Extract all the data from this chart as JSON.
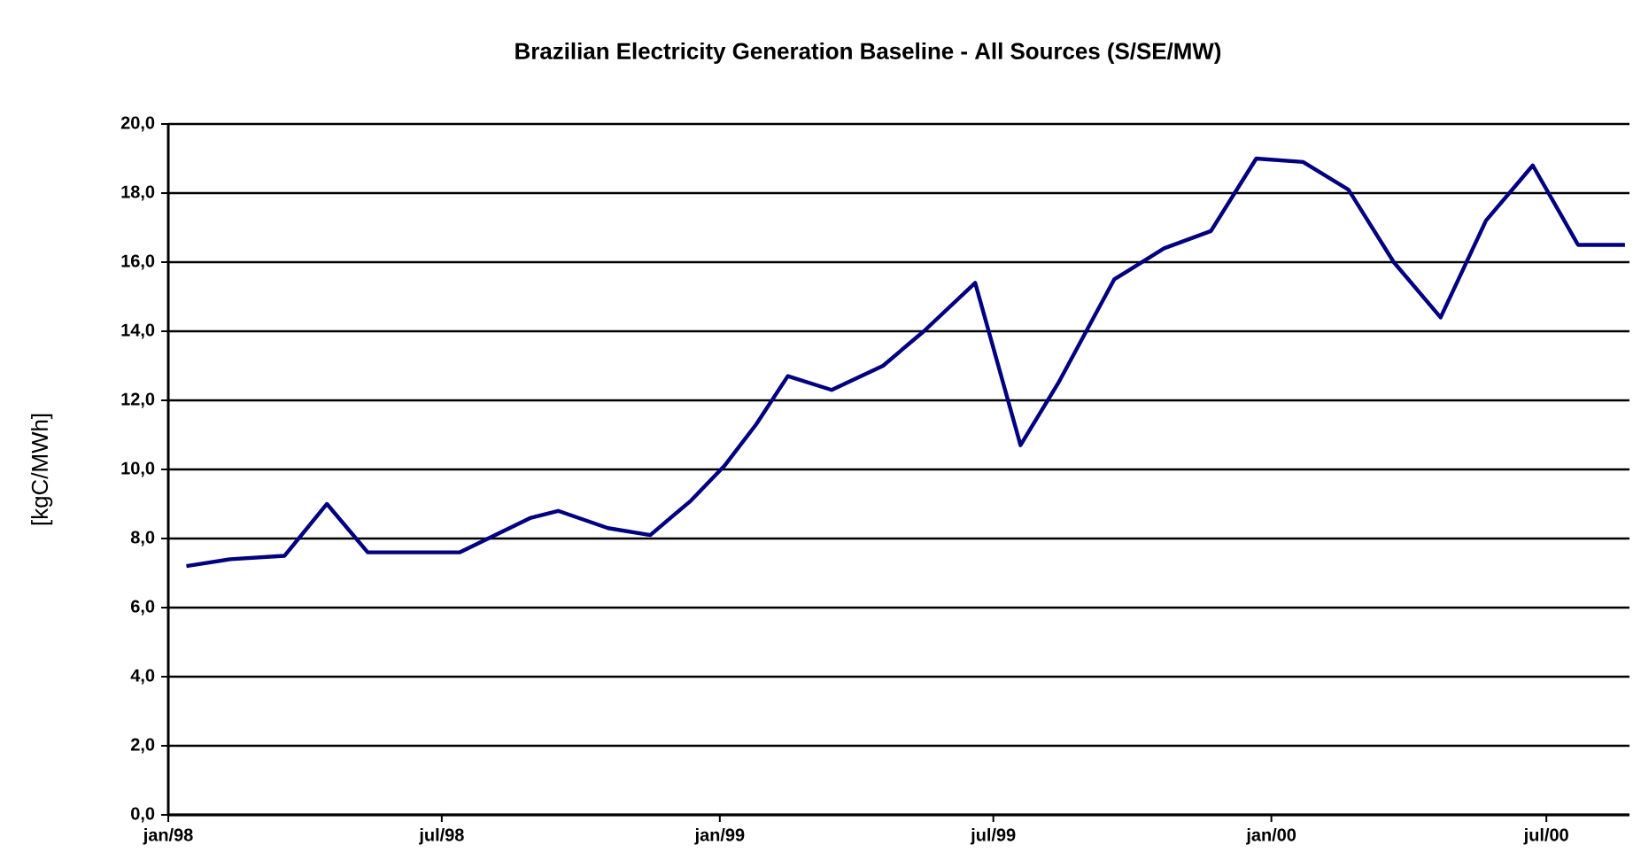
{
  "chart_data": {
    "type": "line",
    "title": "Brazilian Electricity Generation Baseline - All Sources (S/SE/MW)",
    "ylabel": "[kgC/MWh]",
    "x": [
      "1998-01-13",
      "1998-02-11",
      "1998-03-19",
      "1998-04-16",
      "1998-05-13",
      "1998-07-13",
      "1998-08-29",
      "1998-09-16",
      "1998-10-19",
      "1998-11-16",
      "1998-12-13",
      "1999-01-04",
      "1999-01-25",
      "1999-02-15",
      "1999-03-16",
      "1999-04-19",
      "1999-05-16",
      "1999-06-19",
      "1999-07-19",
      "1999-08-13",
      "1999-09-19",
      "1999-10-22",
      "1999-11-22",
      "1999-12-22",
      "2000-01-22",
      "2000-02-21",
      "2000-03-22",
      "2000-04-22",
      "2000-05-22",
      "2000-06-22",
      "2000-07-22",
      "2000-08-22"
    ],
    "values": [
      7.2,
      7.4,
      7.5,
      9.0,
      7.6,
      7.6,
      8.6,
      8.8,
      8.3,
      8.1,
      9.1,
      10.1,
      11.3,
      12.7,
      12.3,
      13.0,
      14.0,
      15.4,
      10.7,
      12.5,
      15.5,
      16.4,
      16.9,
      19.0,
      18.9,
      18.1,
      16.0,
      14.4,
      17.2,
      18.8,
      16.5,
      16.5
    ],
    "color": "#000080",
    "xlim": [
      "1998-01-01",
      "2000-08-25"
    ],
    "xticks": [
      {
        "value": "1998-01-01",
        "label": "jan/98"
      },
      {
        "value": "1998-07-01",
        "label": "jul/98"
      },
      {
        "value": "1999-01-01",
        "label": "jan/99"
      },
      {
        "value": "1999-07-01",
        "label": "jul/99"
      },
      {
        "value": "2000-01-01",
        "label": "jan/00"
      },
      {
        "value": "2000-07-01",
        "label": "jul/00"
      }
    ],
    "ylim": [
      0,
      20
    ],
    "yticks": [
      {
        "value": 0,
        "label": "0,0"
      },
      {
        "value": 2,
        "label": "2,0"
      },
      {
        "value": 4,
        "label": "4,0"
      },
      {
        "value": 6,
        "label": "6,0"
      },
      {
        "value": 8,
        "label": "8,0"
      },
      {
        "value": 10,
        "label": "10,0"
      },
      {
        "value": 12,
        "label": "12,0"
      },
      {
        "value": 14,
        "label": "14,0"
      },
      {
        "value": 16,
        "label": "16,0"
      },
      {
        "value": 18,
        "label": "18,0"
      },
      {
        "value": 20,
        "label": "20,0"
      }
    ],
    "grid": "y",
    "marker": "none",
    "line_style": "solid"
  }
}
